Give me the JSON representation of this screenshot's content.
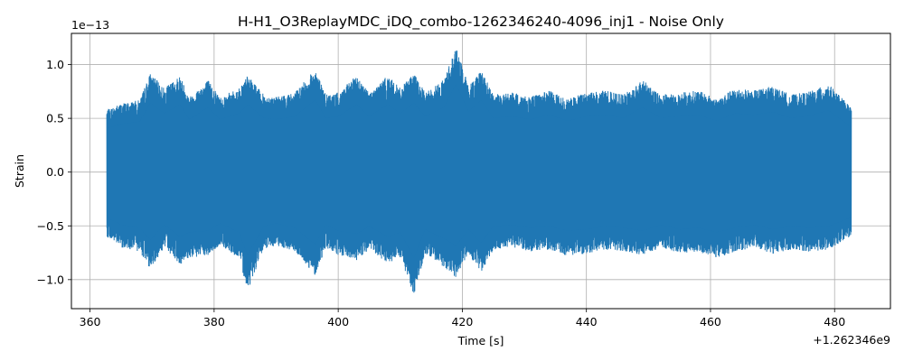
{
  "chart_data": {
    "type": "line",
    "title": "H-H1_O3ReplayMDC_iDQ_combo-1262346240-4096_inj1 - Noise Only",
    "xlabel": "Time [s]",
    "ylabel": "Strain",
    "x_offset_label": "+1.262346e9",
    "y_scale_label": "1e−13",
    "xlim": [
      357,
      489
    ],
    "ylim": [
      -1.27,
      1.29
    ],
    "x_ticks": [
      360,
      380,
      400,
      420,
      440,
      460,
      480
    ],
    "x_tick_labels": [
      "360",
      "380",
      "400",
      "420",
      "440",
      "460",
      "480"
    ],
    "y_ticks": [
      -1.0,
      -0.5,
      0.0,
      0.5,
      1.0
    ],
    "y_tick_labels": [
      "−1.0",
      "−0.5",
      "0.0",
      "0.5",
      "1.0"
    ],
    "grid": true,
    "series": [
      {
        "color": "#1f77b4",
        "x_start": 362.7,
        "x_end": 482.7,
        "envelope_x": [
          362.7,
          365,
          368,
          369.7,
          372,
          374.5,
          376,
          379,
          381,
          384,
          385.4,
          388,
          390,
          393,
          396.3,
          398,
          400,
          403,
          405,
          408,
          410,
          412.2,
          414,
          417,
          419,
          421,
          423,
          425,
          428,
          431,
          434,
          437,
          440,
          443,
          446,
          449,
          452,
          455,
          458,
          461,
          464,
          467,
          470,
          473,
          476,
          479,
          482.7
        ],
        "upper": [
          0.58,
          0.64,
          0.67,
          0.92,
          0.78,
          0.9,
          0.7,
          0.86,
          0.7,
          0.78,
          0.9,
          0.72,
          0.7,
          0.74,
          0.96,
          0.72,
          0.74,
          0.9,
          0.74,
          0.9,
          0.78,
          0.92,
          0.74,
          0.86,
          1.17,
          0.8,
          0.96,
          0.72,
          0.74,
          0.7,
          0.76,
          0.68,
          0.74,
          0.76,
          0.72,
          0.86,
          0.72,
          0.74,
          0.76,
          0.68,
          0.78,
          0.76,
          0.8,
          0.72,
          0.75,
          0.82,
          0.6
        ],
        "lower": [
          -0.6,
          -0.7,
          -0.74,
          -0.9,
          -0.7,
          -0.86,
          -0.8,
          -0.78,
          -0.68,
          -0.8,
          -1.1,
          -0.72,
          -0.68,
          -0.74,
          -0.96,
          -0.7,
          -0.78,
          -0.82,
          -0.72,
          -0.86,
          -0.8,
          -1.14,
          -0.76,
          -0.88,
          -0.98,
          -0.76,
          -0.94,
          -0.72,
          -0.7,
          -0.74,
          -0.72,
          -0.78,
          -0.76,
          -0.72,
          -0.74,
          -0.78,
          -0.7,
          -0.76,
          -0.74,
          -0.8,
          -0.74,
          -0.7,
          -0.76,
          -0.72,
          -0.74,
          -0.72,
          -0.6
        ]
      }
    ]
  }
}
